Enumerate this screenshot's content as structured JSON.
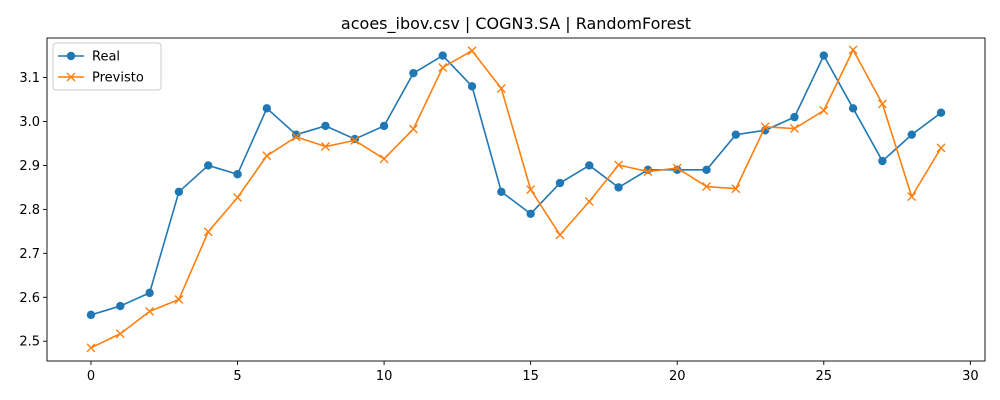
{
  "chart_data": {
    "type": "line",
    "title": "acoes_ibov.csv | COGN3.SA | RandomForest",
    "xlabel": "",
    "ylabel": "",
    "x": [
      0,
      1,
      2,
      3,
      4,
      5,
      6,
      7,
      8,
      9,
      10,
      11,
      12,
      13,
      14,
      15,
      16,
      17,
      18,
      19,
      20,
      21,
      22,
      23,
      24,
      25,
      26,
      27,
      28,
      29
    ],
    "xlim": [
      -1.5,
      30.5
    ],
    "ylim": [
      2.455,
      3.19
    ],
    "xticks": [
      0,
      5,
      10,
      15,
      20,
      25,
      30
    ],
    "yticks": [
      2.5,
      2.6,
      2.7,
      2.8,
      2.9,
      3.0,
      3.1
    ],
    "grid": false,
    "legend_position": "upper-left",
    "series": [
      {
        "name": "Real",
        "color": "#1f77b4",
        "marker": "circle",
        "values": [
          2.56,
          2.58,
          2.61,
          2.84,
          2.9,
          2.88,
          3.03,
          2.97,
          2.99,
          2.96,
          2.99,
          3.11,
          3.15,
          3.08,
          2.84,
          2.79,
          2.86,
          2.9,
          2.85,
          2.89,
          2.89,
          2.89,
          2.97,
          2.98,
          3.01,
          3.15,
          3.03,
          2.91,
          2.97,
          3.02
        ]
      },
      {
        "name": "Previsto",
        "color": "#ff7f0e",
        "marker": "x",
        "values": [
          2.485,
          2.517,
          2.568,
          2.595,
          2.749,
          2.827,
          2.922,
          2.965,
          2.943,
          2.957,
          2.915,
          2.983,
          3.123,
          3.161,
          3.075,
          2.845,
          2.742,
          2.818,
          2.901,
          2.886,
          2.894,
          2.852,
          2.847,
          2.988,
          2.984,
          3.025,
          3.163,
          3.04,
          2.829,
          2.94
        ]
      }
    ]
  }
}
